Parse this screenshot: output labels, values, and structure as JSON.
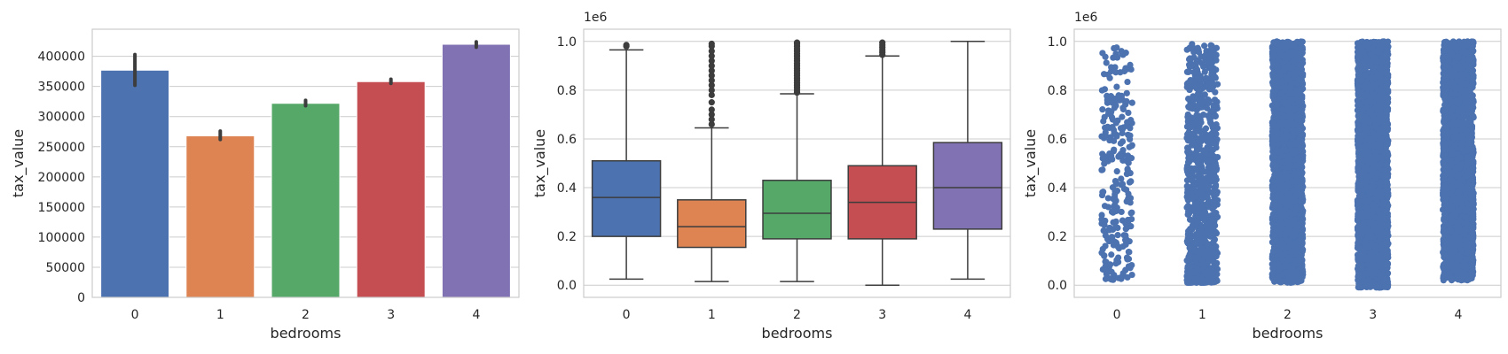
{
  "chart_data": [
    {
      "type": "bar",
      "xlabel": "bedrooms",
      "ylabel": "tax_value",
      "categories": [
        "0",
        "1",
        "2",
        "3",
        "4"
      ],
      "values": [
        377000,
        268000,
        322000,
        358000,
        420000
      ],
      "error_bars": [
        [
          352000,
          403000
        ],
        [
          262000,
          276000
        ],
        [
          318000,
          327000
        ],
        [
          355000,
          362000
        ],
        [
          415000,
          424000
        ]
      ],
      "colors": [
        "#4c72b0",
        "#dd8452",
        "#55a868",
        "#c44e52",
        "#8172b3"
      ],
      "ylim": [
        0,
        445000
      ],
      "yticks": [
        0,
        50000,
        100000,
        150000,
        200000,
        250000,
        300000,
        350000,
        400000
      ],
      "ytick_labels": [
        "0",
        "50000",
        "100000",
        "150000",
        "200000",
        "250000",
        "300000",
        "350000",
        "400000"
      ],
      "grid": "y"
    },
    {
      "type": "box",
      "xlabel": "bedrooms",
      "ylabel": "tax_value",
      "offset_label": "1e6",
      "categories": [
        "0",
        "1",
        "2",
        "3",
        "4"
      ],
      "boxes": [
        {
          "whislo": 0.025,
          "q1": 0.2,
          "med": 0.36,
          "q3": 0.51,
          "whishi": 0.965,
          "fliers": [
            0.98,
            0.985
          ]
        },
        {
          "whislo": 0.015,
          "q1": 0.155,
          "med": 0.24,
          "q3": 0.35,
          "whishi": 0.645,
          "fliers": [
            0.66,
            0.68,
            0.7,
            0.72,
            0.75,
            0.78,
            0.8,
            0.82,
            0.84,
            0.86,
            0.88,
            0.9,
            0.92,
            0.94,
            0.96,
            0.98,
            0.99
          ]
        },
        {
          "whislo": 0.015,
          "q1": 0.19,
          "med": 0.295,
          "q3": 0.43,
          "whishi": 0.785,
          "fliers": [
            0.79,
            0.8,
            0.81,
            0.82,
            0.83,
            0.84,
            0.85,
            0.86,
            0.87,
            0.88,
            0.89,
            0.9,
            0.91,
            0.92,
            0.93,
            0.94,
            0.95,
            0.96,
            0.97,
            0.98,
            0.99,
            0.995
          ]
        },
        {
          "whislo": 0.0,
          "q1": 0.19,
          "med": 0.34,
          "q3": 0.49,
          "whishi": 0.94,
          "fliers": [
            0.945,
            0.955,
            0.965,
            0.975,
            0.985,
            0.995
          ]
        },
        {
          "whislo": 0.025,
          "q1": 0.23,
          "med": 0.4,
          "q3": 0.585,
          "whishi": 1.0,
          "fliers": []
        }
      ],
      "colors": [
        "#4c72b0",
        "#dd8452",
        "#55a868",
        "#c44e52",
        "#8172b3"
      ],
      "ylim": [
        -0.05,
        1.05
      ],
      "yticks": [
        0.0,
        0.2,
        0.4,
        0.6,
        0.8,
        1.0
      ],
      "ytick_labels": [
        "0.0",
        "0.2",
        "0.4",
        "0.6",
        "0.8",
        "1.0"
      ],
      "grid": "y"
    },
    {
      "type": "scatter",
      "subtype": "strip",
      "xlabel": "bedrooms",
      "ylabel": "tax_value",
      "offset_label": "1e6",
      "categories": [
        "0",
        "1",
        "2",
        "3",
        "4"
      ],
      "strips": [
        {
          "min": 0.02,
          "max": 0.98,
          "density": "sparse"
        },
        {
          "min": 0.01,
          "max": 0.99,
          "density": "medium"
        },
        {
          "min": 0.01,
          "max": 1.0,
          "density": "dense"
        },
        {
          "min": -0.01,
          "max": 1.0,
          "density": "dense"
        },
        {
          "min": 0.02,
          "max": 1.0,
          "density": "dense"
        }
      ],
      "color": "#4c72b0",
      "ylim": [
        -0.05,
        1.05
      ],
      "yticks": [
        0.0,
        0.2,
        0.4,
        0.6,
        0.8,
        1.0
      ],
      "ytick_labels": [
        "0.0",
        "0.2",
        "0.4",
        "0.6",
        "0.8",
        "1.0"
      ],
      "grid": "y"
    }
  ]
}
